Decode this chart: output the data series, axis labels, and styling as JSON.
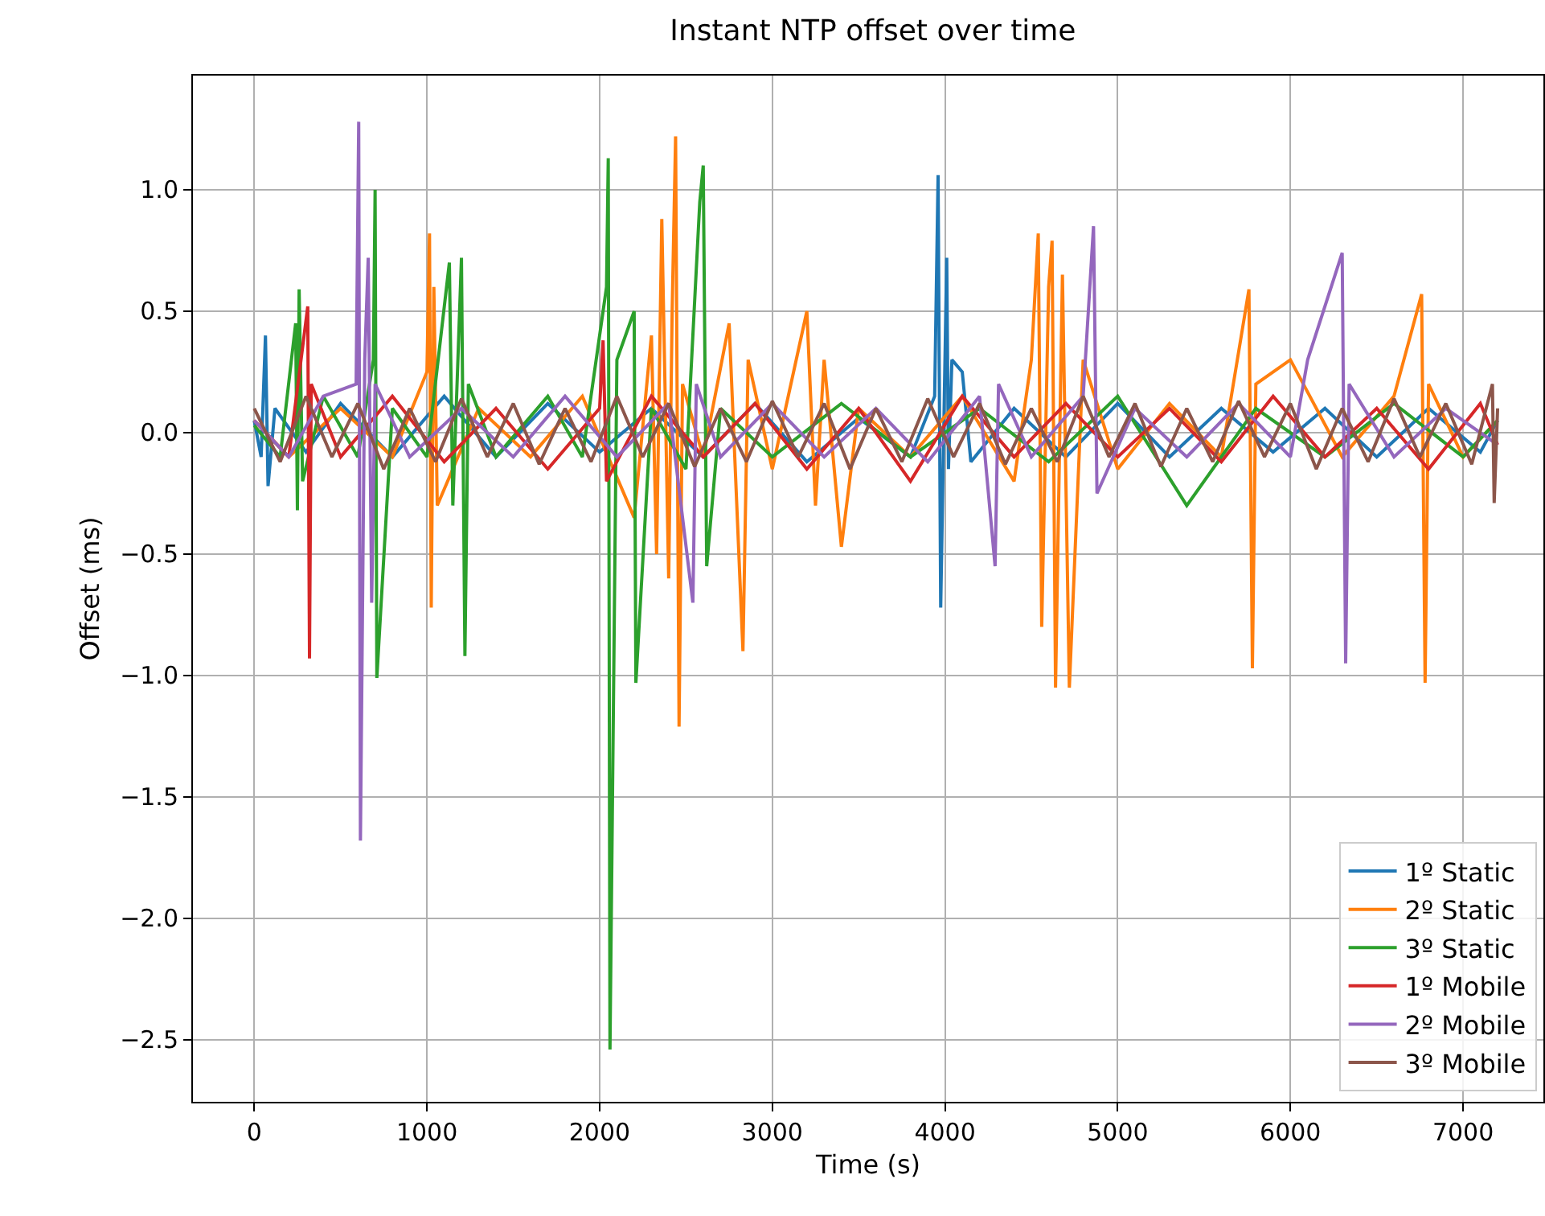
{
  "chart_data": {
    "type": "line",
    "title": "Instant NTP offset over time",
    "xlabel": "Time (s)",
    "ylabel": "Offset (ms)",
    "xlim": [
      -355,
      7465
    ],
    "ylim": [
      -2.755,
      1.47
    ],
    "xticks": [
      0,
      1000,
      2000,
      3000,
      4000,
      5000,
      6000,
      7000
    ],
    "yticks": [
      {
        "value": -2.5,
        "label": "−2.5"
      },
      {
        "value": -2.0,
        "label": "−2.0"
      },
      {
        "value": -1.5,
        "label": "−1.5"
      },
      {
        "value": -1.0,
        "label": "−1.0"
      },
      {
        "value": -0.5,
        "label": "−0.5"
      },
      {
        "value": 0.0,
        "label": "0.0"
      },
      {
        "value": 0.5,
        "label": "0.5"
      },
      {
        "value": 1.0,
        "label": "1.0"
      }
    ],
    "grid": true,
    "legend": "bottom right",
    "marker": "none",
    "line_style": "solid",
    "series": [
      {
        "name": "1º Static",
        "color": "#1f77b4",
        "x": [
          0,
          40,
          65,
          80,
          120,
          300,
          500,
          800,
          1100,
          1400,
          1700,
          2000,
          2300,
          2600,
          2900,
          3200,
          3500,
          3800,
          3940,
          3960,
          3975,
          4010,
          4020,
          4040,
          4100,
          4150,
          4400,
          4700,
          5000,
          5300,
          5600,
          5900,
          6200,
          6500,
          6800,
          7100,
          7200
        ],
        "values": [
          0.05,
          -0.1,
          0.4,
          -0.22,
          0.1,
          -0.08,
          0.12,
          -0.1,
          0.15,
          -0.1,
          0.12,
          -0.08,
          0.1,
          -0.1,
          0.12,
          -0.12,
          0.06,
          -0.1,
          0.15,
          1.06,
          -0.72,
          0.72,
          -0.15,
          0.3,
          0.25,
          -0.12,
          0.1,
          -0.1,
          0.12,
          -0.1,
          0.1,
          -0.08,
          0.1,
          -0.1,
          0.1,
          -0.08,
          0.05
        ]
      },
      {
        "name": "2º Static",
        "color": "#ff7f0e",
        "x": [
          0,
          200,
          500,
          800,
          1000,
          1015,
          1025,
          1040,
          1060,
          1300,
          1600,
          1900,
          2200,
          2300,
          2330,
          2360,
          2400,
          2420,
          2440,
          2460,
          2480,
          2600,
          2750,
          2830,
          2860,
          3000,
          3200,
          3250,
          3300,
          3400,
          3500,
          3800,
          4100,
          4400,
          4500,
          4540,
          4560,
          4600,
          4620,
          4640,
          4680,
          4720,
          4800,
          5000,
          5300,
          5600,
          5760,
          5780,
          5800,
          6000,
          6300,
          6600,
          6760,
          6780,
          6800,
          7000,
          7200
        ],
        "values": [
          0.05,
          -0.1,
          0.1,
          -0.1,
          0.25,
          0.82,
          -0.72,
          0.6,
          -0.3,
          0.1,
          -0.1,
          0.15,
          -0.35,
          0.4,
          -0.5,
          0.88,
          -0.6,
          0.5,
          1.22,
          -1.21,
          0.2,
          -0.1,
          0.45,
          -0.9,
          0.3,
          -0.15,
          0.5,
          -0.3,
          0.3,
          -0.47,
          0.1,
          -0.1,
          0.15,
          -0.2,
          0.3,
          0.82,
          -0.8,
          0.6,
          0.79,
          -1.05,
          0.65,
          -1.05,
          0.3,
          -0.15,
          0.12,
          -0.1,
          0.59,
          -0.97,
          0.2,
          0.3,
          -0.1,
          0.15,
          0.57,
          -1.03,
          0.2,
          -0.1,
          0.05
        ]
      },
      {
        "name": "3º Static",
        "color": "#2ca02c",
        "x": [
          0,
          150,
          240,
          250,
          260,
          280,
          400,
          600,
          690,
          700,
          710,
          800,
          1000,
          1130,
          1150,
          1200,
          1220,
          1240,
          1400,
          1700,
          1900,
          2040,
          2050,
          2060,
          2100,
          2200,
          2210,
          2300,
          2500,
          2580,
          2600,
          2620,
          2700,
          3000,
          3400,
          3800,
          4200,
          4600,
          5000,
          5400,
          5800,
          6200,
          6600,
          7000,
          7200
        ],
        "values": [
          0.03,
          -0.1,
          0.45,
          -0.32,
          0.59,
          -0.2,
          0.15,
          -0.1,
          0.3,
          1.0,
          -1.01,
          0.1,
          -0.1,
          0.7,
          -0.3,
          0.72,
          -0.92,
          0.2,
          -0.1,
          0.15,
          -0.1,
          0.6,
          1.13,
          -2.54,
          0.3,
          0.5,
          -1.03,
          0.1,
          -0.15,
          0.95,
          1.1,
          -0.55,
          0.1,
          -0.1,
          0.12,
          -0.1,
          0.1,
          -0.12,
          0.15,
          -0.3,
          0.1,
          -0.1,
          0.12,
          -0.1,
          0.05
        ]
      },
      {
        "name": "1º Mobile",
        "color": "#d62728",
        "x": [
          0,
          200,
          310,
          320,
          330,
          500,
          800,
          1100,
          1400,
          1700,
          2000,
          2020,
          2040,
          2300,
          2600,
          2900,
          3200,
          3500,
          3800,
          4100,
          4400,
          4700,
          5000,
          5300,
          5600,
          5900,
          6200,
          6500,
          6800,
          7100,
          7200
        ],
        "values": [
          0.05,
          -0.1,
          0.52,
          -0.93,
          0.2,
          -0.1,
          0.15,
          -0.12,
          0.1,
          -0.15,
          0.1,
          0.38,
          -0.2,
          0.15,
          -0.1,
          0.12,
          -0.15,
          0.1,
          -0.2,
          0.15,
          -0.1,
          0.12,
          -0.1,
          0.1,
          -0.12,
          0.15,
          -0.1,
          0.1,
          -0.15,
          0.12,
          -0.05
        ]
      },
      {
        "name": "2º Mobile",
        "color": "#9467bd",
        "x": [
          0,
          200,
          400,
          590,
          605,
          615,
          640,
          660,
          680,
          700,
          900,
          1200,
          1500,
          1800,
          2100,
          2400,
          2540,
          2560,
          2700,
          3000,
          3300,
          3600,
          3900,
          4200,
          4290,
          4310,
          4500,
          4800,
          4860,
          4880,
          5100,
          5400,
          5700,
          6000,
          6100,
          6300,
          6320,
          6340,
          6600,
          6900,
          7200
        ],
        "values": [
          0.05,
          -0.1,
          0.15,
          0.2,
          1.28,
          -1.68,
          0.3,
          0.72,
          -0.7,
          0.2,
          -0.1,
          0.1,
          -0.1,
          0.15,
          -0.1,
          0.12,
          -0.7,
          0.2,
          -0.1,
          0.12,
          -0.1,
          0.1,
          -0.12,
          0.15,
          -0.55,
          0.2,
          -0.1,
          0.15,
          0.85,
          -0.25,
          0.1,
          -0.1,
          0.12,
          -0.1,
          0.3,
          0.74,
          -0.95,
          0.2,
          -0.1,
          0.1,
          -0.05
        ]
      },
      {
        "name": "3º Mobile",
        "color": "#8c564b",
        "x": [
          0,
          150,
          300,
          450,
          600,
          750,
          900,
          1050,
          1200,
          1350,
          1500,
          1650,
          1800,
          1950,
          2100,
          2250,
          2400,
          2550,
          2700,
          2850,
          3000,
          3150,
          3300,
          3450,
          3600,
          3750,
          3900,
          4050,
          4200,
          4350,
          4500,
          4650,
          4800,
          4950,
          5100,
          5250,
          5400,
          5550,
          5700,
          5850,
          6000,
          6150,
          6300,
          6450,
          6600,
          6750,
          6900,
          7050,
          7170,
          7180,
          7200
        ],
        "values": [
          0.1,
          -0.12,
          0.15,
          -0.1,
          0.12,
          -0.15,
          0.1,
          -0.12,
          0.14,
          -0.1,
          0.12,
          -0.13,
          0.1,
          -0.12,
          0.15,
          -0.1,
          0.12,
          -0.14,
          0.1,
          -0.12,
          0.13,
          -0.1,
          0.12,
          -0.15,
          0.1,
          -0.12,
          0.14,
          -0.1,
          0.12,
          -0.13,
          0.1,
          -0.12,
          0.15,
          -0.1,
          0.12,
          -0.14,
          0.1,
          -0.12,
          0.13,
          -0.1,
          0.12,
          -0.15,
          0.1,
          -0.12,
          0.14,
          -0.1,
          0.12,
          -0.13,
          0.2,
          -0.29,
          0.1
        ]
      }
    ]
  }
}
